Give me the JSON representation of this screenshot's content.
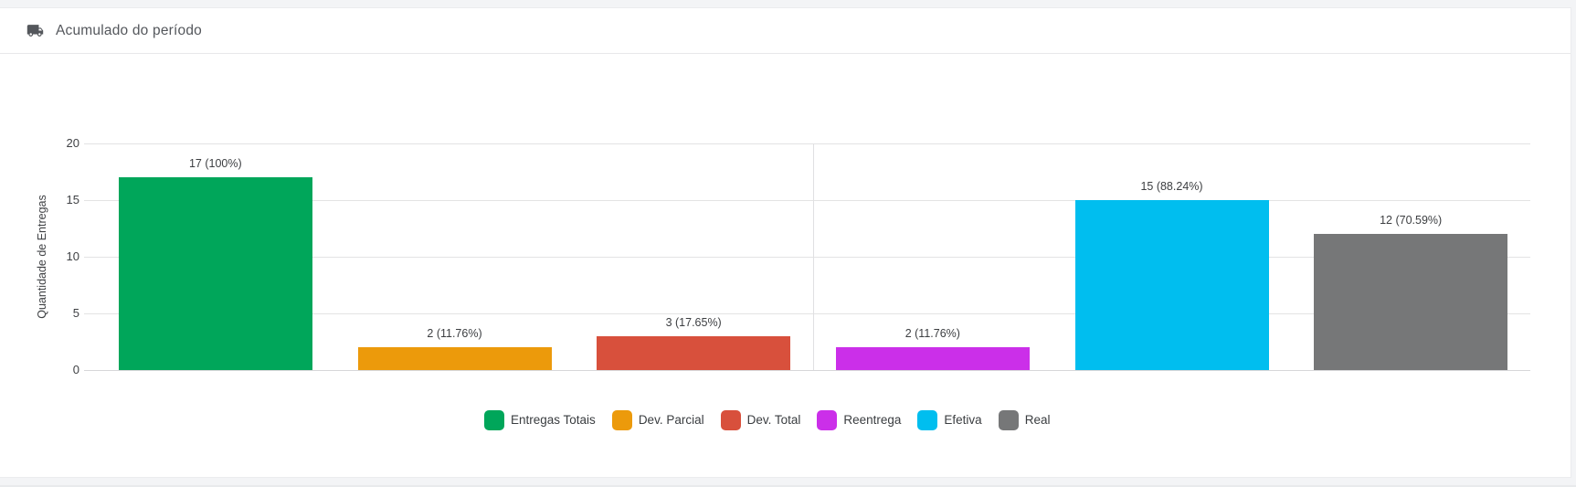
{
  "header": {
    "icon": "truck-icon",
    "title": "Acumulado do período"
  },
  "chart_data": {
    "type": "bar",
    "title": "Acumulado do período",
    "xlabel": "",
    "ylabel": "Quantidade de Entregas",
    "ylim": [
      0,
      20
    ],
    "yticks": [
      0,
      5,
      10,
      15,
      20
    ],
    "grid": "horizontal gridlines every 5 units + one vertical divider at plot center",
    "legend_position": "bottom",
    "categories": [
      "Entregas Totais",
      "Dev. Parcial",
      "Dev. Total",
      "Reentrega",
      "Efetiva",
      "Real"
    ],
    "values": [
      17,
      2,
      3,
      2,
      15,
      12
    ],
    "bar_labels": [
      "17 (100%)",
      "2 (11.76%)",
      "3 (17.65%)",
      "2 (11.76%)",
      "15 (88.24%)",
      "12 (70.59%)"
    ],
    "colors": [
      "#00A65A",
      "#EC9A0B",
      "#D8503C",
      "#CB2FE9",
      "#00BEEF",
      "#767778"
    ]
  },
  "theme": {
    "page_bg": "#f3f4f6",
    "card_bg": "#ffffff",
    "border": "#e8e8ea",
    "gridline": "#e3e3e4",
    "text_dark": "#3c3e41",
    "header_text": "#54575c"
  }
}
